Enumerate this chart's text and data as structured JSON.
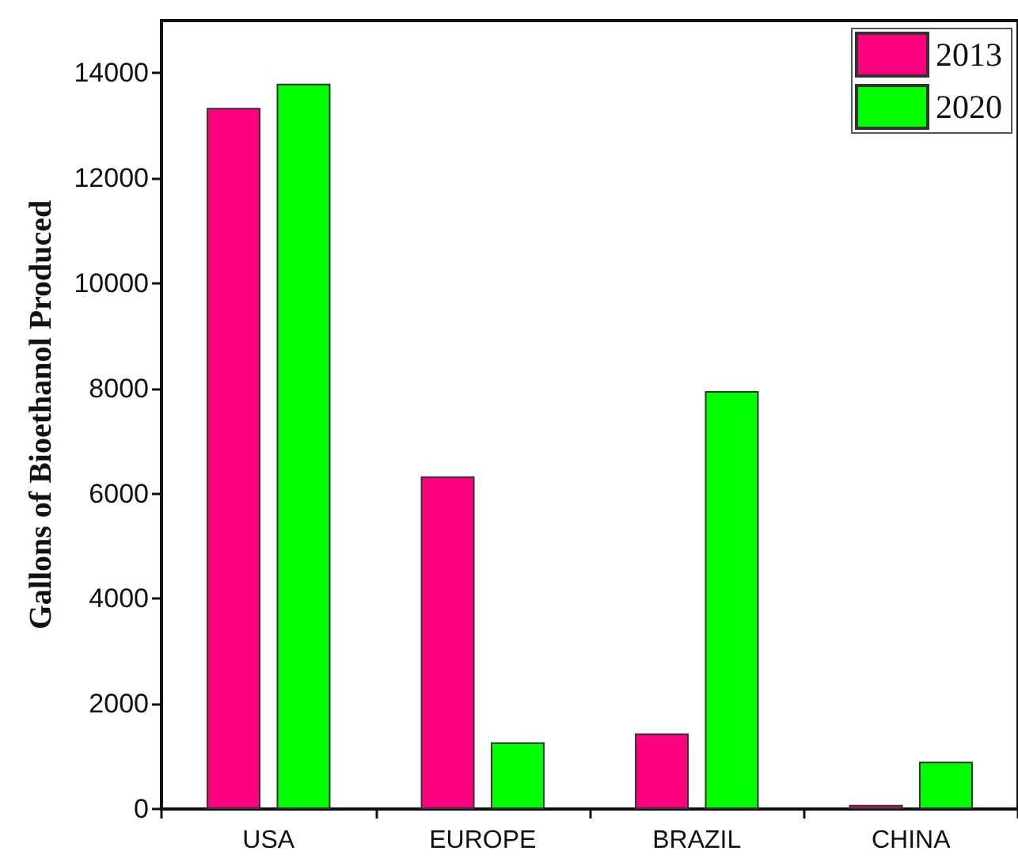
{
  "chart_data": {
    "type": "bar",
    "ylabel": "Gallons of Bioethanol Produced",
    "categories": [
      "USA",
      "EUROPE",
      "BRAZIL",
      "CHINA"
    ],
    "series": [
      {
        "name": "2013",
        "color": "#ff0080",
        "values": [
          13340,
          6330,
          1440,
          80
        ]
      },
      {
        "name": "2020",
        "color": "#00ff00",
        "values": [
          13800,
          1270,
          7950,
          900
        ]
      }
    ],
    "ylim": [
      0,
      15000
    ],
    "yticks": [
      0,
      2000,
      4000,
      6000,
      8000,
      10000,
      12000,
      14000
    ],
    "grid": false,
    "legend": "top right"
  }
}
